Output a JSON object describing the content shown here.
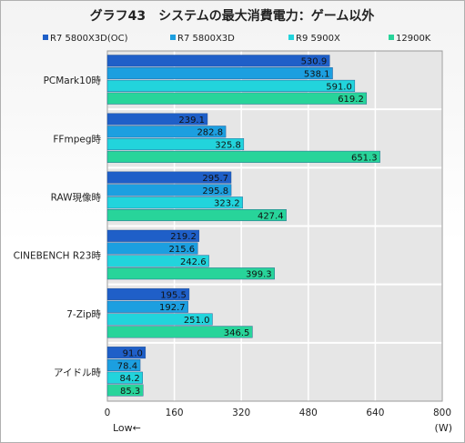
{
  "chart_data": {
    "type": "bar",
    "orientation": "horizontal",
    "title": "グラフ43　システムの最大消費電力：ゲーム以外",
    "categories": [
      "PCMark10時",
      "FFmpeg時",
      "RAW現像時",
      "CINEBENCH R23時",
      "7-Zip時",
      "アイドル時"
    ],
    "series": [
      {
        "name": "R7 5800X3D(OC)",
        "color": "#1f5fc8",
        "values": [
          530.9,
          239.1,
          295.7,
          219.2,
          195.5,
          91.0
        ]
      },
      {
        "name": "R7 5800X3D",
        "color": "#1c9fe0",
        "values": [
          538.1,
          282.8,
          295.8,
          215.6,
          192.7,
          78.4
        ]
      },
      {
        "name": "R9 5900X",
        "color": "#22d4dc",
        "values": [
          591.0,
          325.8,
          323.2,
          242.6,
          251.0,
          84.2
        ]
      },
      {
        "name": "12900K",
        "color": "#28d49a",
        "values": [
          619.2,
          651.3,
          427.4,
          399.3,
          346.5,
          85.3
        ]
      }
    ],
    "xlim": [
      0,
      800
    ],
    "xticks": [
      "0",
      "160",
      "320",
      "480",
      "640",
      "800"
    ],
    "xlabel_left": "Low←",
    "xunit": "(W)",
    "grid": true,
    "legend_position": "top"
  }
}
